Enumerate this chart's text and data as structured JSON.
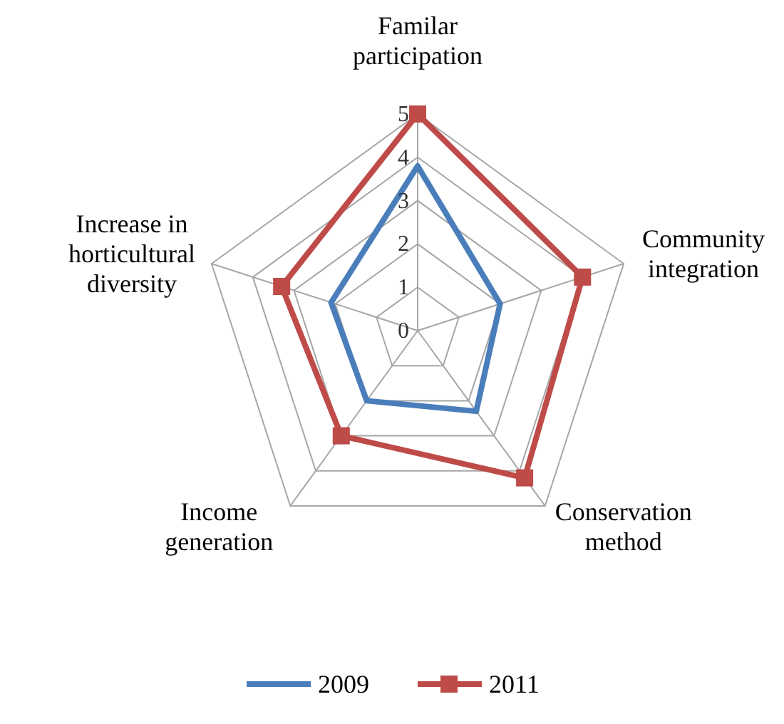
{
  "chart_data": {
    "type": "radar",
    "categories": [
      "Familar participation",
      "Community integration",
      "Conservation method",
      "Income generation",
      "Increase in horticultural diversity"
    ],
    "series": [
      {
        "name": "2009",
        "color": "#4a7ebb",
        "values": [
          3.8,
          2,
          2.3,
          2,
          2.1
        ],
        "marker": "none"
      },
      {
        "name": "2011",
        "color": "#be4b48",
        "values": [
          5,
          4,
          4.2,
          3,
          3.3
        ],
        "marker": "square"
      }
    ],
    "ylim": [
      0,
      5
    ],
    "yticks": [
      0,
      1,
      2,
      3,
      4,
      5
    ],
    "grid": true,
    "legend": "bottom"
  }
}
